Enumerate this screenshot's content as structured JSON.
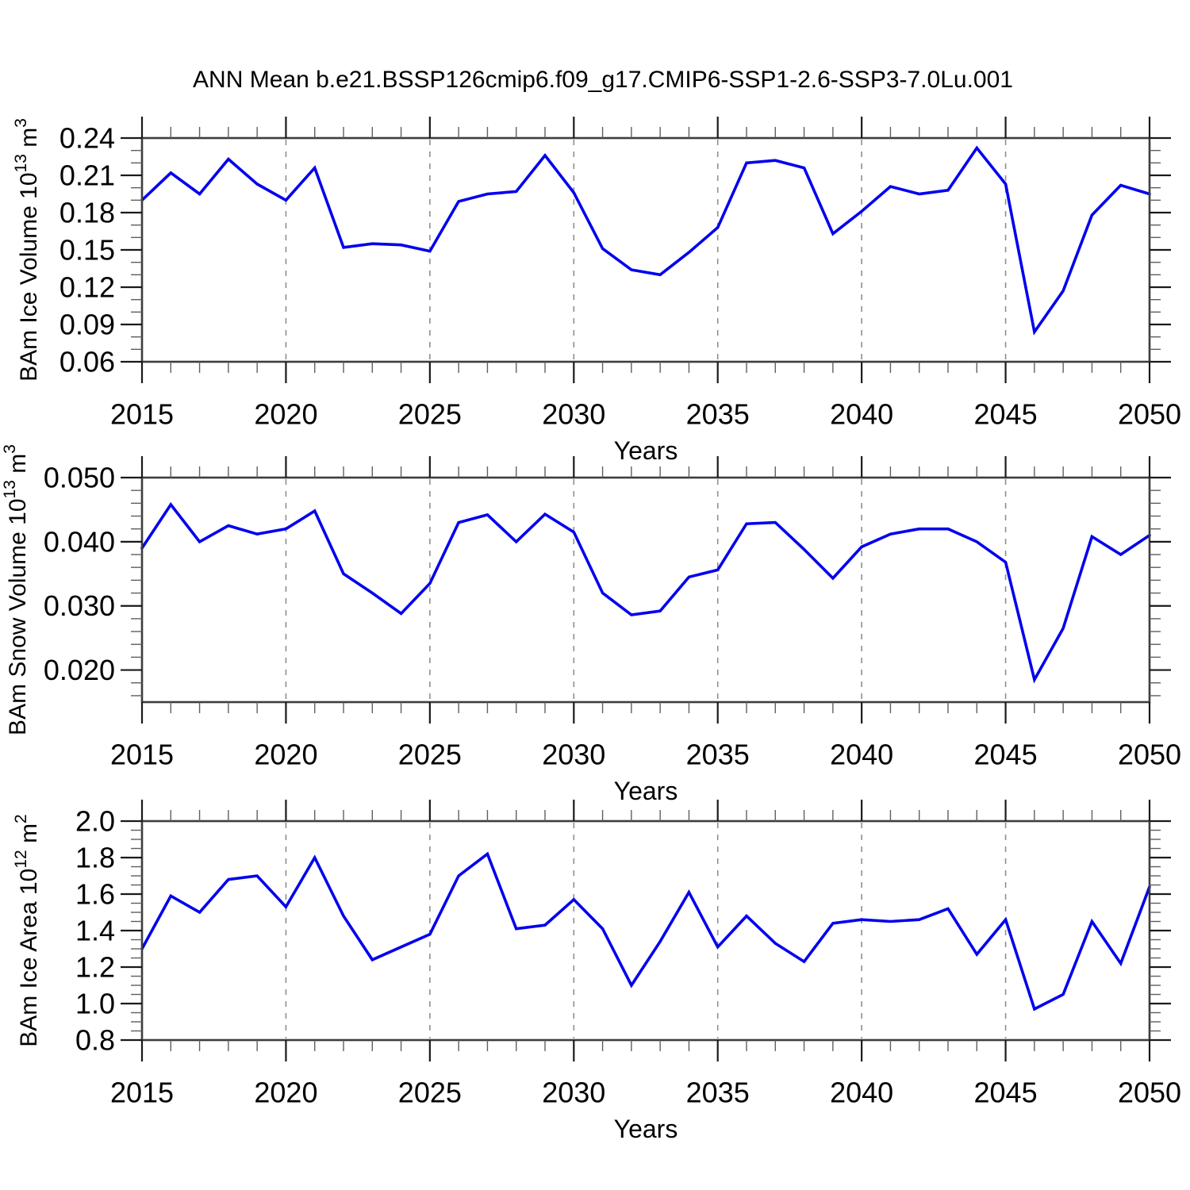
{
  "title": "ANN Mean b.e21.BSSP126cmip6.f09_g17.CMIP6-SSP1-2.6-SSP3-7.0Lu.001",
  "colors": {
    "line": "#0000EE",
    "axis": "#3d3d3d",
    "major_tick": "#1a1a1a",
    "minor_tick": "#5f5f5f",
    "grid": "#8f8f8f",
    "text": "#000000",
    "background": "#ffffff"
  },
  "x_axis": {
    "label": "Years",
    "min": 2015,
    "max": 2050,
    "major_tick_years": [
      2015,
      2020,
      2025,
      2030,
      2035,
      2040,
      2045,
      2050
    ],
    "minor_tick_step_years": 1,
    "grid_years": [
      2020,
      2025,
      2030,
      2035,
      2040,
      2045
    ]
  },
  "years": [
    2015,
    2016,
    2017,
    2018,
    2019,
    2020,
    2021,
    2022,
    2023,
    2024,
    2025,
    2026,
    2027,
    2028,
    2029,
    2030,
    2031,
    2032,
    2033,
    2034,
    2035,
    2036,
    2037,
    2038,
    2039,
    2040,
    2041,
    2042,
    2043,
    2044,
    2045,
    2046,
    2047,
    2048,
    2049,
    2050
  ],
  "chart_data": [
    {
      "type": "line",
      "series_name": "BAm Ice Volume",
      "ylabel": "BAm Ice Volume 10^13 m^3",
      "ylabel_parts": [
        {
          "text": "BAm Ice Volume 10"
        },
        {
          "text": "13",
          "sup": true
        },
        {
          "text": " m"
        },
        {
          "text": "3",
          "sup": true
        }
      ],
      "xlabel": "Years",
      "ylim": [
        0.06,
        0.24
      ],
      "ytick_values": [
        0.06,
        0.09,
        0.12,
        0.15,
        0.18,
        0.21,
        0.24
      ],
      "ytick_labels": [
        "0.06",
        "0.09",
        "0.12",
        "0.15",
        "0.18",
        "0.21",
        "0.24"
      ],
      "y_minor_step": 0.01,
      "grid": "vertical-dashed",
      "x": [
        2015,
        2016,
        2017,
        2018,
        2019,
        2020,
        2021,
        2022,
        2023,
        2024,
        2025,
        2026,
        2027,
        2028,
        2029,
        2030,
        2031,
        2032,
        2033,
        2034,
        2035,
        2036,
        2037,
        2038,
        2039,
        2040,
        2041,
        2042,
        2043,
        2044,
        2045,
        2046,
        2047,
        2048,
        2049,
        2050
      ],
      "values": [
        0.19,
        0.212,
        0.195,
        0.223,
        0.203,
        0.19,
        0.216,
        0.152,
        0.155,
        0.154,
        0.149,
        0.189,
        0.195,
        0.197,
        0.226,
        0.196,
        0.151,
        0.134,
        0.13,
        0.148,
        0.168,
        0.22,
        0.222,
        0.216,
        0.163,
        0.181,
        0.201,
        0.195,
        0.198,
        0.232,
        0.203,
        0.084,
        0.117,
        0.178,
        0.202,
        0.195
      ]
    },
    {
      "type": "line",
      "series_name": "BAm Snow Volume",
      "ylabel": "BAm Snow Volume 10^13 m^3",
      "ylabel_parts": [
        {
          "text": "BAm Snow Volume 10"
        },
        {
          "text": "13",
          "sup": true
        },
        {
          "text": " m"
        },
        {
          "text": "3",
          "sup": true
        }
      ],
      "xlabel": "Years",
      "ylim": [
        0.015,
        0.05
      ],
      "ytick_values": [
        0.02,
        0.03,
        0.04,
        0.05
      ],
      "ytick_labels": [
        "0.020",
        "0.030",
        "0.040",
        "0.050"
      ],
      "y_minor_step": 0.002,
      "grid": "vertical-dashed",
      "x": [
        2015,
        2016,
        2017,
        2018,
        2019,
        2020,
        2021,
        2022,
        2023,
        2024,
        2025,
        2026,
        2027,
        2028,
        2029,
        2030,
        2031,
        2032,
        2033,
        2034,
        2035,
        2036,
        2037,
        2038,
        2039,
        2040,
        2041,
        2042,
        2043,
        2044,
        2045,
        2046,
        2047,
        2048,
        2049,
        2050
      ],
      "values": [
        0.039,
        0.0458,
        0.04,
        0.0425,
        0.0412,
        0.042,
        0.0448,
        0.035,
        0.032,
        0.0288,
        0.0335,
        0.043,
        0.0442,
        0.04,
        0.0443,
        0.0415,
        0.032,
        0.0286,
        0.0292,
        0.0345,
        0.0356,
        0.0428,
        0.043,
        0.0388,
        0.0343,
        0.0392,
        0.0412,
        0.042,
        0.042,
        0.04,
        0.0368,
        0.0185,
        0.0265,
        0.0408,
        0.038,
        0.041
      ]
    },
    {
      "type": "line",
      "series_name": "BAm Ice Area",
      "ylabel": "BAm Ice Area 10^12 m^2",
      "ylabel_parts": [
        {
          "text": "BAm Ice Area 10"
        },
        {
          "text": "12",
          "sup": true
        },
        {
          "text": " m"
        },
        {
          "text": "2",
          "sup": true
        }
      ],
      "xlabel": "Years",
      "ylim": [
        0.8,
        2.0
      ],
      "ytick_values": [
        0.8,
        1.0,
        1.2,
        1.4,
        1.6,
        1.8,
        2.0
      ],
      "ytick_labels": [
        "0.8",
        "1.0",
        "1.2",
        "1.4",
        "1.6",
        "1.8",
        "2.0"
      ],
      "y_minor_step": 0.05,
      "grid": "vertical-dashed",
      "x": [
        2015,
        2016,
        2017,
        2018,
        2019,
        2020,
        2021,
        2022,
        2023,
        2024,
        2025,
        2026,
        2027,
        2028,
        2029,
        2030,
        2031,
        2032,
        2033,
        2034,
        2035,
        2036,
        2037,
        2038,
        2039,
        2040,
        2041,
        2042,
        2043,
        2044,
        2045,
        2046,
        2047,
        2048,
        2049,
        2050
      ],
      "values": [
        1.3,
        1.59,
        1.5,
        1.68,
        1.7,
        1.53,
        1.8,
        1.48,
        1.24,
        1.31,
        1.38,
        1.7,
        1.82,
        1.41,
        1.43,
        1.57,
        1.41,
        1.1,
        1.34,
        1.61,
        1.31,
        1.48,
        1.33,
        1.23,
        1.44,
        1.46,
        1.45,
        1.46,
        1.52,
        1.27,
        1.46,
        0.97,
        1.05,
        1.45,
        1.22,
        1.64
      ]
    }
  ]
}
